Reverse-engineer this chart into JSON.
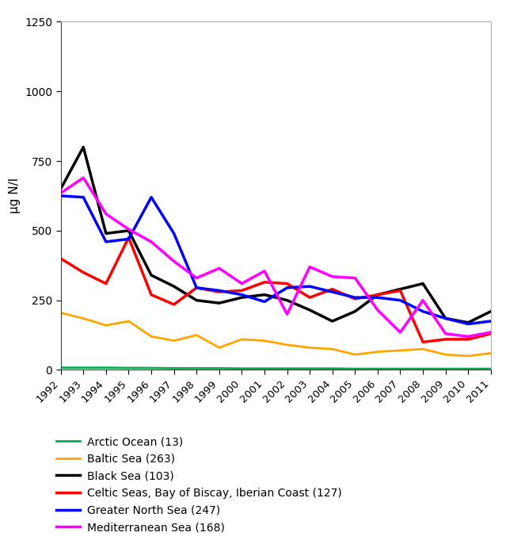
{
  "years": [
    1992,
    1993,
    1994,
    1995,
    1996,
    1997,
    1998,
    1999,
    2000,
    2001,
    2002,
    2003,
    2004,
    2005,
    2006,
    2007,
    2008,
    2009,
    2010,
    2011
  ],
  "series": {
    "Arctic Ocean (13)": {
      "color": "#00b050",
      "linewidth": 2.0,
      "values": [
        8,
        8,
        8,
        7,
        7,
        6,
        6,
        6,
        5,
        5,
        5,
        5,
        5,
        4,
        4,
        4,
        4,
        4,
        4,
        4
      ]
    },
    "Baltic Sea (263)": {
      "color": "#ffa500",
      "linewidth": 2.0,
      "values": [
        205,
        185,
        160,
        175,
        120,
        105,
        125,
        80,
        110,
        105,
        90,
        80,
        75,
        55,
        65,
        70,
        75,
        55,
        50,
        60
      ]
    },
    "Black Sea (103)": {
      "color": "#000000",
      "linewidth": 2.5,
      "values": [
        650,
        800,
        490,
        500,
        340,
        300,
        250,
        240,
        260,
        270,
        250,
        215,
        175,
        210,
        270,
        290,
        310,
        185,
        170,
        210
      ]
    },
    "Celtic Seas, Bay of Biscay, Iberian Coast (127)": {
      "color": "#ff0000",
      "linewidth": 2.5,
      "values": [
        400,
        350,
        310,
        475,
        270,
        235,
        295,
        280,
        285,
        315,
        310,
        260,
        290,
        255,
        270,
        285,
        100,
        110,
        110,
        130
      ]
    },
    "Greater North Sea (247)": {
      "color": "#0000ff",
      "linewidth": 2.5,
      "values": [
        625,
        620,
        460,
        470,
        620,
        490,
        295,
        285,
        270,
        245,
        295,
        300,
        280,
        260,
        260,
        250,
        210,
        185,
        165,
        175
      ]
    },
    "Mediterranean Sea (168)": {
      "color": "#ff00ff",
      "linewidth": 2.5,
      "values": [
        635,
        690,
        560,
        505,
        460,
        390,
        330,
        365,
        310,
        355,
        200,
        370,
        335,
        330,
        215,
        135,
        250,
        130,
        120,
        135
      ]
    }
  },
  "ylabel": "μg N/l",
  "ylim": [
    0,
    1250
  ],
  "yticks": [
    0,
    250,
    500,
    750,
    1000,
    1250
  ],
  "legend_order": [
    "Arctic Ocean (13)",
    "Baltic Sea (263)",
    "Black Sea (103)",
    "Celtic Seas, Bay of Biscay, Iberian Coast (127)",
    "Greater North Sea (247)",
    "Mediterranean Sea (168)"
  ],
  "background_color": "#ffffff",
  "plot_bg_color": "#ffffff"
}
